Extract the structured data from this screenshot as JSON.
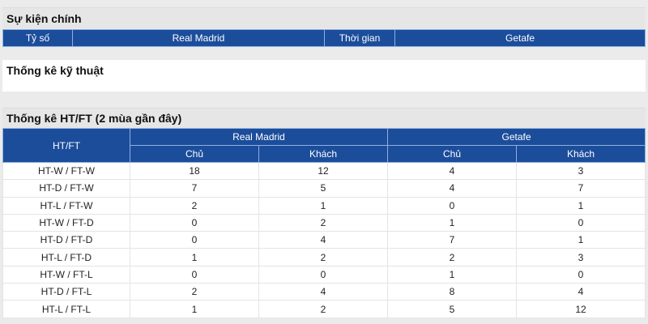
{
  "main_events": {
    "title": "Sự kiện chính",
    "headers": [
      "Tỷ số",
      "Real Madrid",
      "Thời gian",
      "Getafe"
    ]
  },
  "tech_stats": {
    "title": "Thống kê kỹ thuật"
  },
  "htft": {
    "title": "Thống kê HT/FT (2 mùa gần đây)",
    "col_label": "HT/FT",
    "teams": [
      "Real Madrid",
      "Getafe"
    ],
    "sub": [
      "Chủ",
      "Khách",
      "Chủ",
      "Khách"
    ],
    "rows": [
      [
        "HT-W / FT-W",
        "18",
        "12",
        "4",
        "3"
      ],
      [
        "HT-D / FT-W",
        "7",
        "5",
        "4",
        "7"
      ],
      [
        "HT-L / FT-W",
        "2",
        "1",
        "0",
        "1"
      ],
      [
        "HT-W / FT-D",
        "0",
        "2",
        "1",
        "0"
      ],
      [
        "HT-D / FT-D",
        "0",
        "4",
        "7",
        "1"
      ],
      [
        "HT-L / FT-D",
        "1",
        "2",
        "2",
        "3"
      ],
      [
        "HT-W / FT-L",
        "0",
        "0",
        "1",
        "0"
      ],
      [
        "HT-D / FT-L",
        "2",
        "4",
        "8",
        "4"
      ],
      [
        "HT-L / FT-L",
        "1",
        "2",
        "5",
        "12"
      ]
    ]
  },
  "colors": {
    "header_bg": "#1b4d9b",
    "page_bg": "#ebebeb"
  }
}
